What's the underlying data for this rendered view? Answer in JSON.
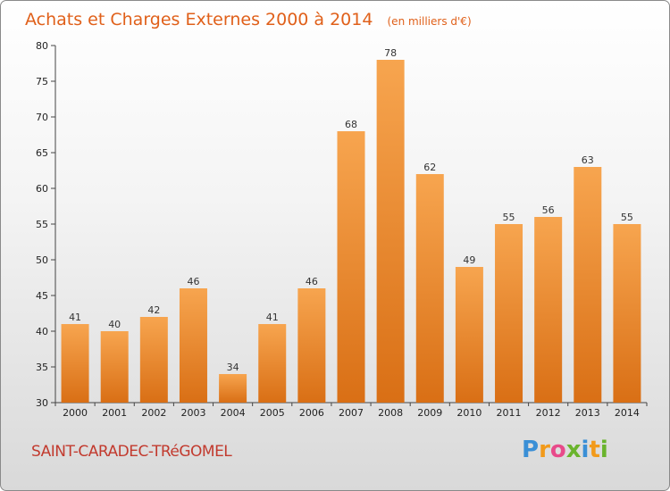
{
  "chart_data": {
    "type": "bar",
    "title": "Achats et Charges Externes 2000 à 2014",
    "subtitle": "(en milliers d'€)",
    "categories": [
      "2000",
      "2001",
      "2002",
      "2003",
      "2004",
      "2005",
      "2006",
      "2007",
      "2008",
      "2009",
      "2010",
      "2011",
      "2012",
      "2013",
      "2014"
    ],
    "values": [
      41,
      40,
      42,
      46,
      34,
      41,
      46,
      68,
      78,
      62,
      49,
      55,
      56,
      63,
      55
    ],
    "ylim": [
      30,
      80
    ],
    "yticks": [
      30,
      35,
      40,
      45,
      50,
      55,
      60,
      65,
      70,
      75,
      80
    ],
    "xlabel": "",
    "ylabel": "",
    "grid": false,
    "bar_color_top": "#f7a54f",
    "bar_color_bottom": "#d96f15"
  },
  "footer": {
    "commune": "SAINT-CARADEC-TRéGOMEL",
    "logo_letters": [
      {
        "ch": "P",
        "color": "#3a8fd6"
      },
      {
        "ch": "r",
        "color": "#f29a1a"
      },
      {
        "ch": "o",
        "color": "#e84a8a"
      },
      {
        "ch": "x",
        "color": "#6ab42d"
      },
      {
        "ch": "i",
        "color": "#3a8fd6"
      },
      {
        "ch": "t",
        "color": "#f29a1a"
      },
      {
        "ch": "i",
        "color": "#6ab42d"
      }
    ]
  }
}
